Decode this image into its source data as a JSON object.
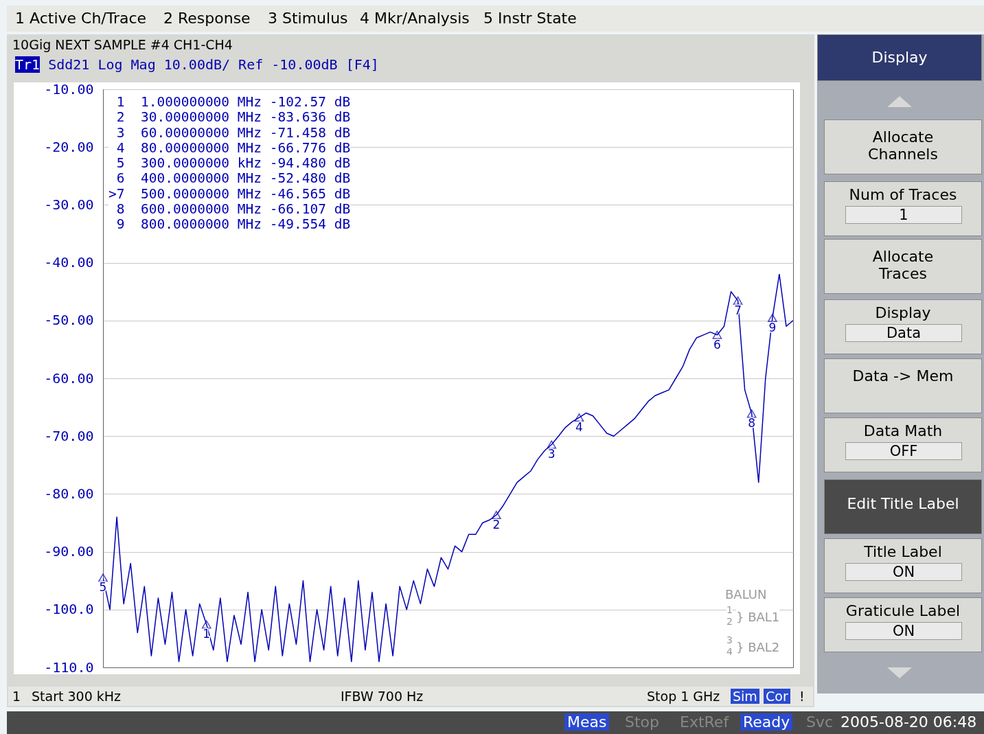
{
  "chart_data": {
    "type": "line",
    "title": "10Gig NEXT SAMPLE #4 CH1-CH4",
    "categories": [
      null,
      null,
      null,
      null,
      null,
      null,
      null,
      null,
      null,
      null,
      null,
      null,
      null,
      null,
      null,
      null,
      null,
      null,
      null,
      null,
      null,
      null,
      null,
      null,
      null,
      null,
      null,
      null,
      null,
      null,
      null,
      null,
      null,
      null,
      null,
      null,
      null,
      null,
      null,
      null,
      null,
      null,
      null,
      null,
      null,
      null,
      null,
      null,
      null,
      null,
      null,
      null,
      null,
      null,
      null,
      null,
      null,
      null,
      null,
      null,
      null,
      null,
      null,
      null,
      null,
      null,
      null,
      null,
      null,
      null,
      null,
      null,
      null,
      null,
      null,
      null,
      null,
      null,
      null,
      null,
      null,
      null,
      null,
      null,
      null,
      null,
      null,
      null,
      null,
      null,
      null,
      null,
      null,
      null,
      null,
      null,
      null,
      null,
      null,
      null,
      null
    ],
    "series": [
      {
        "color": "#0000b4",
        "values": [
          -94.48,
          -100,
          -84,
          -99,
          -92,
          -104,
          -96,
          -108,
          -98,
          -106,
          -97,
          -109,
          -100,
          -108,
          -99,
          -102.57,
          -107,
          -98,
          -109,
          -101,
          -106,
          -97,
          -109,
          -100,
          -107,
          -96,
          -108,
          -99,
          -106,
          -95,
          -109,
          -100,
          -107,
          -96,
          -108,
          -98,
          -109,
          -95,
          -107,
          -97,
          -109,
          -99,
          -108,
          -96,
          -100,
          -95,
          -99,
          -93,
          -96,
          -91,
          -93,
          -89,
          -90,
          -87,
          -87,
          -85,
          -84.5,
          -83.636,
          -82,
          -80,
          -78,
          -77,
          -76,
          -74,
          -72.5,
          -71.458,
          -70,
          -68.5,
          -67.5,
          -66.776,
          -66,
          -66.5,
          -68,
          -69.5,
          -70,
          -69,
          -68,
          -67,
          -65.5,
          -64,
          -63,
          -62.5,
          -62,
          -60,
          -58,
          -55,
          -53,
          -52.5,
          -52,
          -52.48,
          -51,
          -45,
          -46.565,
          -62,
          -66.107,
          -78,
          -60,
          -49.554,
          -42,
          -51,
          -50
        ]
      }
    ],
    "ylim": [
      -110,
      -10
    ],
    "yticks": [
      {
        "value": -10,
        "label": "-10.00"
      },
      {
        "value": -20,
        "label": "-20.00"
      },
      {
        "value": -30,
        "label": "-30.00"
      },
      {
        "value": -40,
        "label": "-40.00"
      },
      {
        "value": -50,
        "label": "-50.00"
      },
      {
        "value": -60,
        "label": "-60.00"
      },
      {
        "value": -70,
        "label": "-70.00"
      },
      {
        "value": -80,
        "label": "-80.00"
      },
      {
        "value": -90,
        "label": "-90.00"
      },
      {
        "value": -100,
        "label": "-100.0"
      },
      {
        "value": -110,
        "label": "-110.0"
      }
    ],
    "tick_labels": "y",
    "grid": "y",
    "line_style": "solid",
    "annotations": [
      "1 Active Ch/Trace",
      "2 Response",
      "3 Stimulus",
      "4 Mkr/Analysis",
      "5 Instr State",
      "Tr1",
      "Sdd21 Log Mag 10.00dB/ Ref -10.00dB [F4]",
      " 1  1.000000000 MHz -102.57 dB",
      " 2  30.00000000 MHz -83.636 dB",
      " 3  60.00000000 MHz -71.458 dB",
      " 4  80.00000000 MHz -66.776 dB",
      " 5  300.0000000 kHz -94.480 dB",
      " 6  400.0000000 MHz -52.480 dB",
      ">7  500.0000000 MHz -46.565 dB",
      " 8  600.0000000 MHz -66.107 dB",
      " 9  800.0000000 MHz -49.554 dB",
      "BALUN",
      "1",
      "2",
      "} BAL1",
      "3",
      "4",
      "} BAL2",
      "1",
      "Start 300 kHz",
      "IFBW 700 Hz",
      "Stop 1 GHz",
      "Sim",
      "Cor",
      "!",
      "Display",
      "Allocate Channels",
      "Num of Traces",
      "1",
      "Allocate Traces",
      "Display",
      "Data",
      "Data -> Mem",
      "Data Math",
      "OFF",
      "Edit Title Label",
      "Title Label",
      "ON",
      "Graticule Label",
      "ON",
      "Meas",
      "Stop",
      "ExtRef",
      "Ready",
      "Svc",
      "2005-08-20 06:48",
      {
        "text": "1",
        "y": -102.57
      },
      {
        "text": "2",
        "y": -83.636
      },
      {
        "text": "3",
        "y": -71.458
      },
      {
        "text": "4",
        "y": -66.776
      },
      {
        "text": "5",
        "y": -94.48
      },
      {
        "text": "6",
        "y": -52.48
      },
      {
        "text": "7",
        "y": -46.565
      },
      {
        "text": "8",
        "y": -66.107
      },
      {
        "text": "9",
        "y": -49.554
      }
    ]
  }
}
